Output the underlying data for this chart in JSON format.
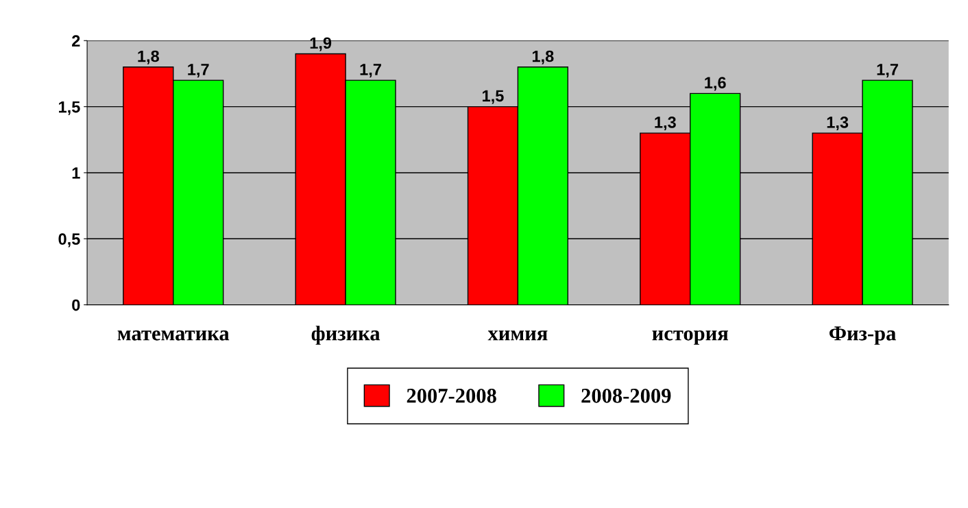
{
  "chart_data": {
    "type": "bar",
    "categories": [
      "математика",
      "физика",
      "химия",
      "история",
      "Физ-ра"
    ],
    "series": [
      {
        "name": "2007-2008",
        "color": "#ff0000",
        "values": [
          1.8,
          1.9,
          1.5,
          1.3,
          1.3
        ],
        "value_labels": [
          "1,8",
          "1,9",
          "1,5",
          "1,3",
          "1,3"
        ]
      },
      {
        "name": "2008-2009",
        "color": "#00ff00",
        "values": [
          1.7,
          1.7,
          1.8,
          1.6,
          1.7
        ],
        "value_labels": [
          "1,7",
          "1,7",
          "1,8",
          "1,6",
          "1,7"
        ]
      }
    ],
    "ylim": [
      0,
      2
    ],
    "yticks": [
      0,
      {
        "value": 0.5,
        "label": "0,5"
      },
      1,
      {
        "value": 1.5,
        "label": "1,5"
      },
      2
    ],
    "grid": "y",
    "legend": "bottom"
  }
}
